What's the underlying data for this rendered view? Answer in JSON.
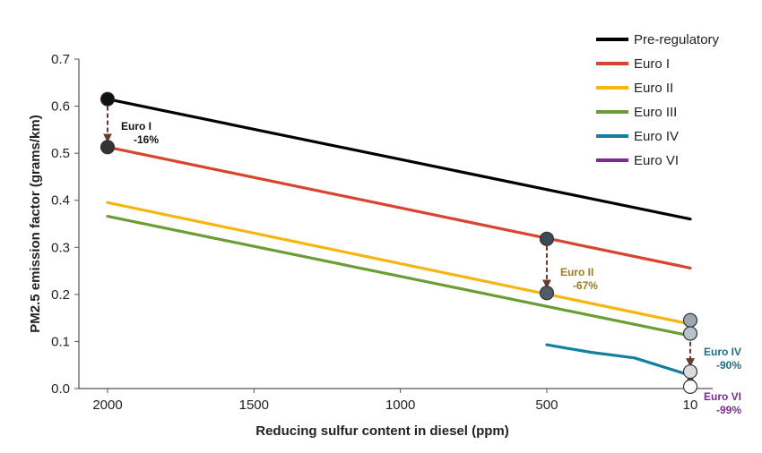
{
  "chart_data": {
    "type": "line",
    "xlabel": "Reducing sulfur content in diesel (ppm)",
    "ylabel": "PM2.5 emission factor (grams/km)",
    "x_direction": "reversed",
    "xlim": [
      2000,
      10
    ],
    "ylim": [
      0,
      0.7
    ],
    "x_ticks": [
      2000,
      1500,
      1000,
      500,
      10
    ],
    "x_tick_labels": [
      "2000",
      "1500",
      "1000",
      "500",
      "10"
    ],
    "y_ticks": [
      0,
      0.1,
      0.2,
      0.3,
      0.4,
      0.5,
      0.6,
      0.7
    ],
    "y_tick_labels": [
      "0.0",
      "0.1",
      "0.2",
      "0.3",
      "0.4",
      "0.5",
      "0.6",
      "0.7"
    ],
    "grid": false,
    "legend_position": "top-right",
    "series": [
      {
        "name": "Pre-regulatory",
        "color": "#000000",
        "points": [
          [
            2000,
            0.615
          ],
          [
            10,
            0.36
          ]
        ]
      },
      {
        "name": "Euro I",
        "color": "#d9442e",
        "points": [
          [
            2000,
            0.513
          ],
          [
            10,
            0.256
          ]
        ]
      },
      {
        "name": "Euro II",
        "color": "#f5b70f",
        "points": [
          [
            2000,
            0.395
          ],
          [
            10,
            0.137
          ]
        ]
      },
      {
        "name": "Euro III",
        "color": "#6a9e35",
        "points": [
          [
            2000,
            0.366
          ],
          [
            10,
            0.112
          ]
        ]
      },
      {
        "name": "Euro IV",
        "color": "#1380a0",
        "points": [
          [
            500,
            0.093
          ],
          [
            350,
            0.077
          ],
          [
            200,
            0.065
          ],
          [
            10,
            0.028
          ]
        ]
      },
      {
        "name": "Euro VI",
        "color": "#7b2d8e",
        "points": [
          [
            20,
            0.006
          ],
          [
            10,
            0.005
          ]
        ]
      }
    ],
    "markers": [
      {
        "x": 2000,
        "y": 0.615,
        "fill": "#111111"
      },
      {
        "x": 2000,
        "y": 0.513,
        "fill": "#333333"
      },
      {
        "x": 500,
        "y": 0.318,
        "fill": "#3c4a55"
      },
      {
        "x": 500,
        "y": 0.203,
        "fill": "#4f5d68"
      },
      {
        "x": 10,
        "y": 0.145,
        "fill": "#9aa8b0"
      },
      {
        "x": 10,
        "y": 0.117,
        "fill": "#b8c2c8"
      },
      {
        "x": 10,
        "y": 0.036,
        "fill": "#d8dcde"
      },
      {
        "x": 10,
        "y": 0.004,
        "fill": "#ffffff"
      }
    ],
    "reduction_arrows": [
      {
        "x": 2000,
        "from": 0.615,
        "to": 0.513
      },
      {
        "x": 500,
        "from": 0.318,
        "to": 0.203
      },
      {
        "x": 10,
        "from": 0.145,
        "to": 0.036
      },
      {
        "x": 10,
        "from": 0.036,
        "to": 0.004
      }
    ],
    "annotations": [
      {
        "lines": [
          "Euro I",
          "-16%"
        ],
        "x": 2000,
        "y": 0.55,
        "color": "#111111",
        "offset": "right"
      },
      {
        "lines": [
          "Euro II",
          "-67%"
        ],
        "x": 500,
        "y": 0.24,
        "color": "#9a7b1e",
        "offset": "right"
      },
      {
        "lines": [
          "Euro IV",
          "-90%"
        ],
        "x": 10,
        "y": 0.07,
        "color": "#1f6f8a",
        "offset": "right"
      },
      {
        "lines": [
          "Euro VI",
          "-99%"
        ],
        "x": 10,
        "y": -0.025,
        "color": "#7b2d8e",
        "offset": "right"
      }
    ]
  }
}
